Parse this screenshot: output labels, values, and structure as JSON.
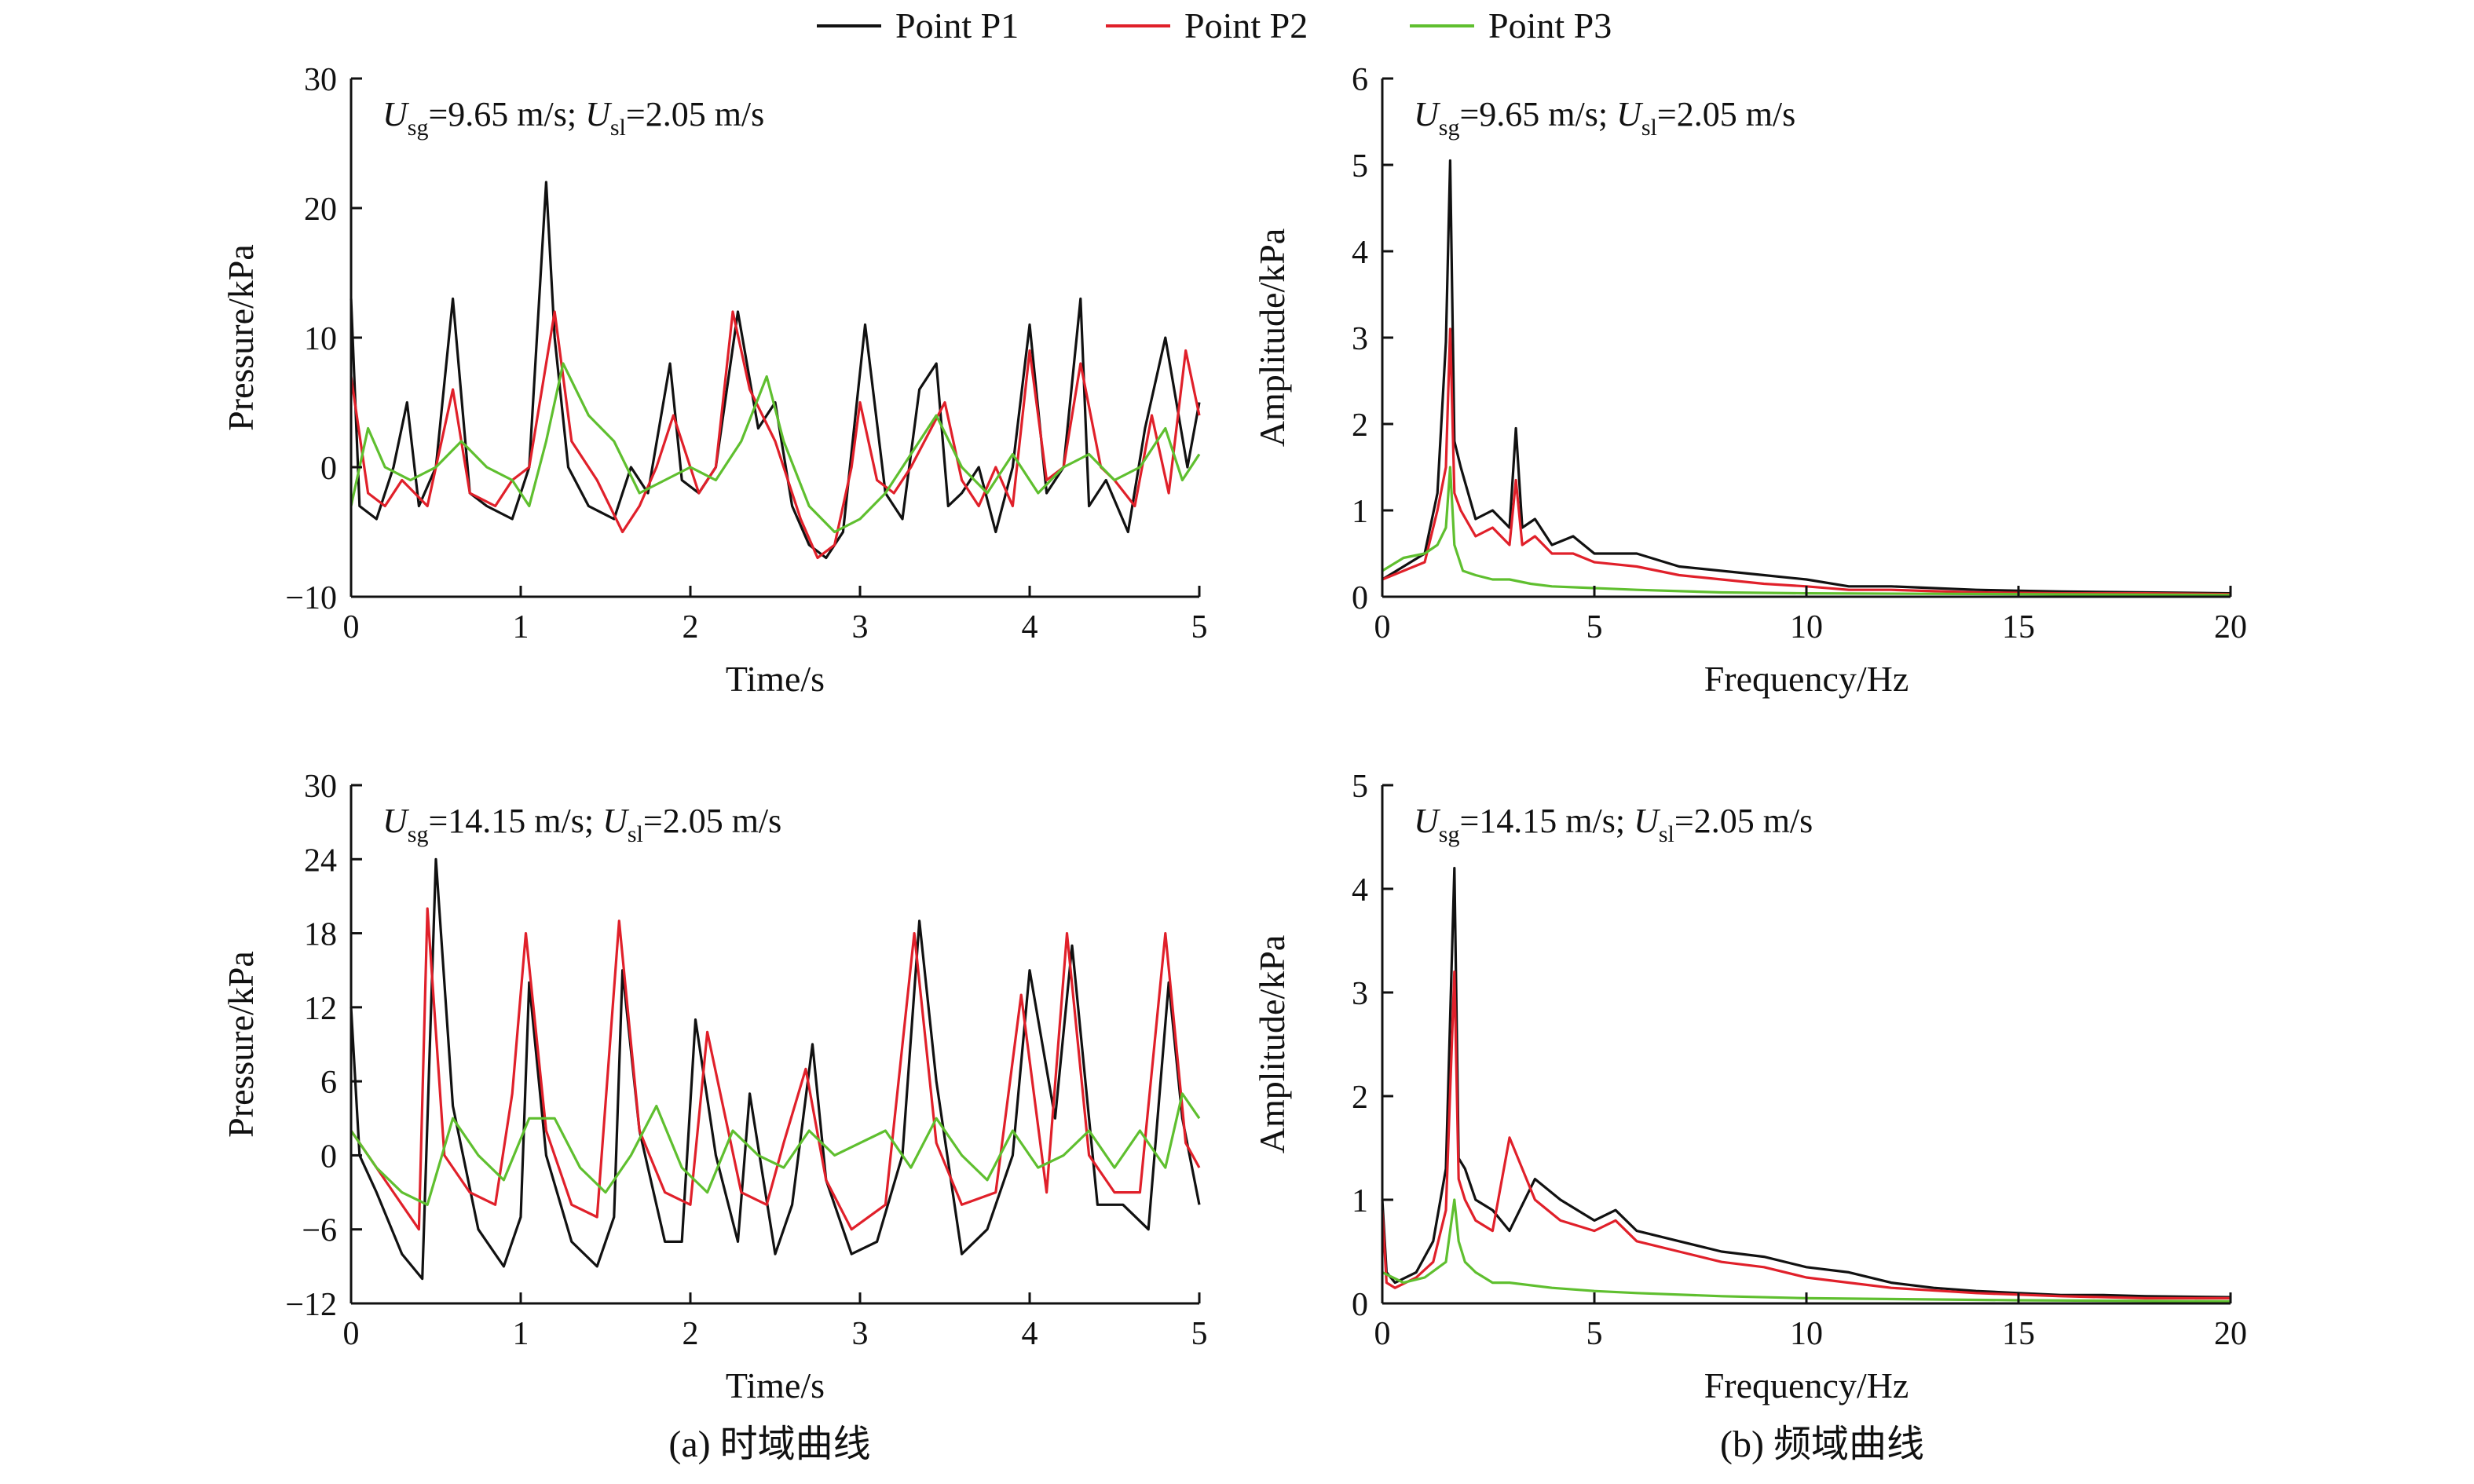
{
  "legend": [
    {
      "label": "Point P1",
      "color": "#111111"
    },
    {
      "label": "Point P2",
      "color": "#e0202a"
    },
    {
      "label": "Point P3",
      "color": "#5fbf2f"
    }
  ],
  "captions": {
    "a": "(a) 时域曲线",
    "b": "(b) 频域曲线"
  },
  "chart_data": [
    {
      "id": "time_top",
      "type": "line",
      "xlabel": "Time/s",
      "ylabel": "Pressure/kPa",
      "xlim": [
        0,
        5
      ],
      "ylim": [
        -10,
        30
      ],
      "xticks": [
        0,
        1,
        2,
        3,
        4,
        5
      ],
      "yticks": [
        -10,
        0,
        10,
        20,
        30
      ],
      "ytick_labels": [
        "−10",
        "0",
        "10",
        "20",
        "30"
      ],
      "annotation": {
        "usg": "9.65 m/s",
        "usl": "2.05 m/s"
      },
      "series": [
        {
          "name": "Point P1",
          "x": [
            0,
            0.05,
            0.15,
            0.25,
            0.33,
            0.4,
            0.5,
            0.6,
            0.7,
            0.8,
            0.95,
            1.05,
            1.15,
            1.2,
            1.28,
            1.4,
            1.55,
            1.65,
            1.75,
            1.88,
            1.95,
            2.05,
            2.15,
            2.28,
            2.4,
            2.5,
            2.6,
            2.7,
            2.8,
            2.9,
            3.03,
            3.15,
            3.25,
            3.35,
            3.45,
            3.52,
            3.6,
            3.7,
            3.8,
            3.9,
            4.0,
            4.1,
            4.2,
            4.3,
            4.35,
            4.45,
            4.58,
            4.68,
            4.8,
            4.93,
            5.0
          ],
          "y": [
            13,
            -3,
            -4,
            0,
            5,
            -3,
            0,
            13,
            -2,
            -3,
            -4,
            0,
            22,
            10,
            0,
            -3,
            -4,
            0,
            -2,
            8,
            -1,
            -2,
            0,
            12,
            3,
            5,
            -3,
            -6,
            -7,
            -5,
            11,
            -2,
            -4,
            6,
            8,
            -3,
            -2,
            0,
            -5,
            0,
            11,
            -2,
            0,
            13,
            -3,
            -1,
            -5,
            3,
            10,
            0,
            5
          ]
        },
        {
          "name": "Point P2",
          "x": [
            0,
            0.1,
            0.2,
            0.3,
            0.45,
            0.6,
            0.7,
            0.85,
            0.95,
            1.05,
            1.15,
            1.2,
            1.3,
            1.45,
            1.6,
            1.7,
            1.8,
            1.9,
            2.05,
            2.15,
            2.25,
            2.35,
            2.5,
            2.65,
            2.75,
            2.85,
            2.95,
            3.0,
            3.1,
            3.2,
            3.3,
            3.5,
            3.6,
            3.7,
            3.8,
            3.9,
            4.0,
            4.1,
            4.2,
            4.3,
            4.42,
            4.5,
            4.62,
            4.72,
            4.82,
            4.92,
            5.0
          ],
          "y": [
            7,
            -2,
            -3,
            -1,
            -3,
            6,
            -2,
            -3,
            -1,
            0,
            8,
            12,
            2,
            -1,
            -5,
            -3,
            0,
            4,
            -2,
            0,
            12,
            6,
            2,
            -4,
            -7,
            -6,
            0,
            5,
            -1,
            -2,
            0,
            5,
            -1,
            -3,
            0,
            -3,
            9,
            -1,
            0,
            8,
            0,
            -1,
            -3,
            4,
            -2,
            9,
            4
          ]
        },
        {
          "name": "Point P3",
          "x": [
            0,
            0.1,
            0.2,
            0.35,
            0.5,
            0.65,
            0.8,
            0.95,
            1.05,
            1.15,
            1.25,
            1.4,
            1.55,
            1.7,
            1.85,
            2.0,
            2.15,
            2.3,
            2.45,
            2.55,
            2.7,
            2.85,
            3.0,
            3.15,
            3.3,
            3.45,
            3.6,
            3.75,
            3.9,
            4.05,
            4.2,
            4.35,
            4.5,
            4.65,
            4.8,
            4.9,
            5.0
          ],
          "y": [
            -3,
            3,
            0,
            -1,
            0,
            2,
            0,
            -1,
            -3,
            2,
            8,
            4,
            2,
            -2,
            -1,
            0,
            -1,
            2,
            7,
            2,
            -3,
            -5,
            -4,
            -2,
            1,
            4,
            0,
            -2,
            1,
            -2,
            0,
            1,
            -1,
            0,
            3,
            -1,
            1
          ]
        }
      ]
    },
    {
      "id": "freq_top",
      "type": "line",
      "xlabel": "Frequency/Hz",
      "ylabel": "Amplitude/kPa",
      "xlim": [
        0,
        20
      ],
      "ylim": [
        0,
        6
      ],
      "xticks": [
        0,
        5,
        10,
        15,
        20
      ],
      "yticks": [
        0,
        1,
        2,
        3,
        4,
        5,
        6
      ],
      "ytick_labels": [
        "0",
        "1",
        "2",
        "3",
        "4",
        "5",
        "6"
      ],
      "annotation": {
        "usg": "9.65 m/s",
        "usl": "2.05 m/s"
      },
      "series": [
        {
          "name": "Point P1",
          "x": [
            0,
            0.5,
            1.0,
            1.3,
            1.5,
            1.6,
            1.7,
            1.85,
            2.2,
            2.6,
            3.0,
            3.15,
            3.3,
            3.6,
            4.0,
            4.5,
            5.0,
            6.0,
            7.0,
            8.0,
            9.0,
            10.0,
            11.0,
            12.0,
            13.0,
            14.0,
            15.0,
            16.0,
            18.0,
            20.0
          ],
          "y": [
            0.2,
            0.35,
            0.5,
            1.2,
            2.95,
            5.05,
            1.8,
            1.5,
            0.9,
            1.0,
            0.8,
            1.95,
            0.8,
            0.9,
            0.6,
            0.7,
            0.5,
            0.5,
            0.35,
            0.3,
            0.25,
            0.2,
            0.12,
            0.12,
            0.1,
            0.08,
            0.07,
            0.06,
            0.05,
            0.04
          ]
        },
        {
          "name": "Point P2",
          "x": [
            0,
            0.5,
            1.0,
            1.3,
            1.5,
            1.6,
            1.7,
            1.85,
            2.2,
            2.6,
            3.0,
            3.15,
            3.3,
            3.6,
            4.0,
            4.5,
            5.0,
            6.0,
            7.0,
            8.0,
            9.0,
            10.0,
            11.0,
            12.0,
            14.0,
            16.0,
            18.0,
            20.0
          ],
          "y": [
            0.2,
            0.3,
            0.4,
            1.0,
            1.5,
            3.1,
            1.2,
            1.0,
            0.7,
            0.8,
            0.6,
            1.35,
            0.6,
            0.7,
            0.5,
            0.5,
            0.4,
            0.35,
            0.25,
            0.2,
            0.15,
            0.12,
            0.08,
            0.08,
            0.05,
            0.04,
            0.04,
            0.03
          ]
        },
        {
          "name": "Point P3",
          "x": [
            0,
            0.5,
            1.0,
            1.3,
            1.5,
            1.6,
            1.7,
            1.9,
            2.2,
            2.6,
            3.0,
            3.5,
            4.0,
            5.0,
            6.0,
            8.0,
            10.0,
            15.0,
            20.0
          ],
          "y": [
            0.3,
            0.45,
            0.5,
            0.6,
            0.8,
            1.5,
            0.6,
            0.3,
            0.25,
            0.2,
            0.2,
            0.15,
            0.12,
            0.1,
            0.08,
            0.05,
            0.04,
            0.03,
            0.02
          ]
        }
      ]
    },
    {
      "id": "time_bottom",
      "type": "line",
      "xlabel": "Time/s",
      "ylabel": "Pressure/kPa",
      "xlim": [
        0,
        5
      ],
      "ylim": [
        -12,
        30
      ],
      "xticks": [
        0,
        1,
        2,
        3,
        4,
        5
      ],
      "yticks": [
        -12,
        -6,
        0,
        6,
        12,
        18,
        24,
        30
      ],
      "ytick_labels": [
        "−12",
        "−6",
        "0",
        "6",
        "12",
        "18",
        "24",
        "30"
      ],
      "annotation": {
        "usg": "14.15 m/s",
        "usl": "2.05 m/s"
      },
      "series": [
        {
          "name": "Point P1",
          "x": [
            0,
            0.05,
            0.15,
            0.3,
            0.42,
            0.5,
            0.6,
            0.75,
            0.9,
            1.0,
            1.05,
            1.15,
            1.3,
            1.45,
            1.55,
            1.6,
            1.7,
            1.85,
            1.95,
            2.03,
            2.15,
            2.28,
            2.35,
            2.5,
            2.6,
            2.72,
            2.8,
            2.95,
            3.1,
            3.25,
            3.35,
            3.45,
            3.6,
            3.75,
            3.9,
            4.0,
            4.15,
            4.25,
            4.4,
            4.55,
            4.7,
            4.82,
            4.9,
            5.0
          ],
          "y": [
            12,
            0,
            -3,
            -8,
            -10,
            24,
            4,
            -6,
            -9,
            -5,
            14,
            0,
            -7,
            -9,
            -5,
            15,
            2,
            -7,
            -7,
            11,
            0,
            -7,
            5,
            -8,
            -4,
            9,
            -2,
            -8,
            -7,
            0,
            19,
            6,
            -8,
            -6,
            0,
            15,
            3,
            17,
            -4,
            -4,
            -6,
            14,
            3,
            -4
          ]
        },
        {
          "name": "Point P2",
          "x": [
            0,
            0.1,
            0.25,
            0.4,
            0.45,
            0.55,
            0.7,
            0.85,
            0.95,
            1.03,
            1.15,
            1.3,
            1.45,
            1.58,
            1.7,
            1.85,
            2.0,
            2.1,
            2.3,
            2.45,
            2.55,
            2.68,
            2.8,
            2.95,
            3.15,
            3.32,
            3.45,
            3.6,
            3.8,
            3.95,
            4.1,
            4.22,
            4.35,
            4.5,
            4.65,
            4.8,
            4.92,
            5.0
          ],
          "y": [
            2,
            0,
            -3,
            -6,
            20,
            0,
            -3,
            -4,
            5,
            18,
            2,
            -4,
            -5,
            19,
            2,
            -3,
            -4,
            10,
            -3,
            -4,
            1,
            7,
            -2,
            -6,
            -4,
            18,
            1,
            -4,
            -3,
            13,
            -3,
            18,
            0,
            -3,
            -3,
            18,
            1,
            -1
          ]
        },
        {
          "name": "Point P3",
          "x": [
            0,
            0.15,
            0.3,
            0.45,
            0.6,
            0.75,
            0.9,
            1.05,
            1.2,
            1.35,
            1.5,
            1.65,
            1.8,
            1.95,
            2.1,
            2.25,
            2.4,
            2.55,
            2.7,
            2.85,
            3.0,
            3.15,
            3.3,
            3.45,
            3.6,
            3.75,
            3.9,
            4.05,
            4.2,
            4.35,
            4.5,
            4.65,
            4.8,
            4.9,
            5.0
          ],
          "y": [
            2,
            -1,
            -3,
            -4,
            3,
            0,
            -2,
            3,
            3,
            -1,
            -3,
            0,
            4,
            -1,
            -3,
            2,
            0,
            -1,
            2,
            0,
            1,
            2,
            -1,
            3,
            0,
            -2,
            2,
            -1,
            0,
            2,
            -1,
            2,
            -1,
            5,
            3
          ]
        }
      ]
    },
    {
      "id": "freq_bottom",
      "type": "line",
      "xlabel": "Frequency/Hz",
      "ylabel": "Amplitude/kPa",
      "xlim": [
        0,
        20
      ],
      "ylim": [
        0,
        5
      ],
      "xticks": [
        0,
        5,
        10,
        15,
        20
      ],
      "yticks": [
        0,
        1,
        2,
        3,
        4,
        5
      ],
      "ytick_labels": [
        "0",
        "1",
        "2",
        "3",
        "4",
        "5"
      ],
      "annotation": {
        "usg": "14.15 m/s",
        "usl": "2.05 m/s"
      },
      "series": [
        {
          "name": "Point P1",
          "x": [
            0,
            0.1,
            0.3,
            0.8,
            1.2,
            1.5,
            1.7,
            1.8,
            1.95,
            2.2,
            2.6,
            3.0,
            3.6,
            4.2,
            5.0,
            5.5,
            6.0,
            7.0,
            8.0,
            9.0,
            10.0,
            11.0,
            12.0,
            13.0,
            14.0,
            15.0,
            16.0,
            17.0,
            18.0,
            20.0
          ],
          "y": [
            1.0,
            0.3,
            0.2,
            0.3,
            0.6,
            1.3,
            4.2,
            1.4,
            1.3,
            1.0,
            0.9,
            0.7,
            1.2,
            1.0,
            0.8,
            0.9,
            0.7,
            0.6,
            0.5,
            0.45,
            0.35,
            0.3,
            0.2,
            0.15,
            0.12,
            0.1,
            0.08,
            0.08,
            0.07,
            0.06
          ]
        },
        {
          "name": "Point P2",
          "x": [
            0,
            0.1,
            0.3,
            0.8,
            1.2,
            1.5,
            1.7,
            1.8,
            1.95,
            2.2,
            2.6,
            3.0,
            3.6,
            4.2,
            5.0,
            5.5,
            6.0,
            7.0,
            8.0,
            9.0,
            10.0,
            11.0,
            12.0,
            14.0,
            16.0,
            18.0,
            20.0
          ],
          "y": [
            0.9,
            0.2,
            0.15,
            0.25,
            0.4,
            0.9,
            3.2,
            1.2,
            1.0,
            0.8,
            0.7,
            1.6,
            1.0,
            0.8,
            0.7,
            0.8,
            0.6,
            0.5,
            0.4,
            0.35,
            0.25,
            0.2,
            0.15,
            0.1,
            0.07,
            0.05,
            0.05
          ]
        },
        {
          "name": "Point P3",
          "x": [
            0,
            0.5,
            1.0,
            1.5,
            1.7,
            1.8,
            1.95,
            2.2,
            2.6,
            3.0,
            4.0,
            5.0,
            6.0,
            8.0,
            10.0,
            15.0,
            20.0
          ],
          "y": [
            0.3,
            0.2,
            0.25,
            0.4,
            1.0,
            0.6,
            0.4,
            0.3,
            0.2,
            0.2,
            0.15,
            0.12,
            0.1,
            0.07,
            0.05,
            0.03,
            0.02
          ]
        }
      ]
    }
  ]
}
